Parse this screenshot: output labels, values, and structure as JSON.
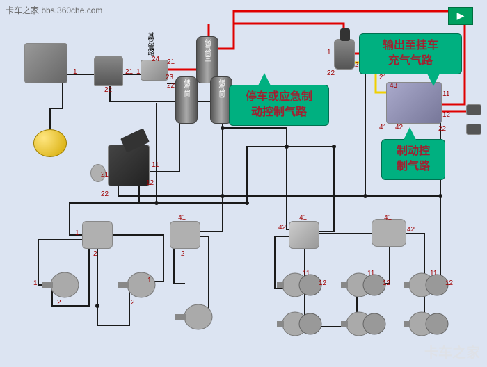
{
  "watermark_top": "卡车之家 bbs.360che.com",
  "watermark_bottom": "卡车之家",
  "nav_glyph": "▶",
  "callouts": {
    "parking": "停车或应急制\n动控制气路",
    "trailer_out": "输出至挂车\n充气气路",
    "brake_ctrl": "制动控\n制气路"
  },
  "v_label_other": "其它管路",
  "tanks": {
    "t3": "储气筒三",
    "t1": "储气筒一",
    "t2": "储气筒二"
  },
  "colors": {
    "red_line": "#e00000",
    "yellow_line": "#f0d000",
    "black_line": "#1a1a1a",
    "callout_bg": "#00b080",
    "callout_text": "#a02030",
    "bg": "#dce4f2"
  },
  "ports": [
    "1",
    "2",
    "11",
    "12",
    "21",
    "22",
    "23",
    "24",
    "41",
    "42",
    "43"
  ]
}
